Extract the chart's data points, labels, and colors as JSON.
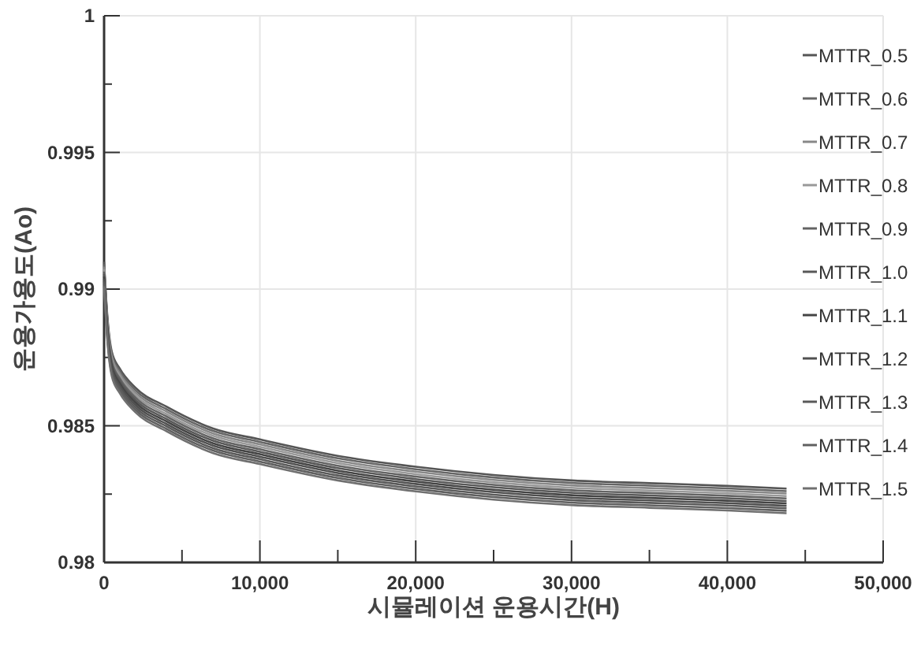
{
  "chart_data": {
    "type": "line",
    "xlabel": "시뮬레이션 운용시간(H)",
    "ylabel": "운용가용도(Ao)",
    "x": [
      0,
      200,
      500,
      1000,
      2000,
      4000,
      7000,
      10000,
      15000,
      20000,
      25000,
      30000,
      35000,
      40000,
      43800
    ],
    "xlim": [
      0,
      50000
    ],
    "xticks": [
      {
        "value": 0,
        "label": "0"
      },
      {
        "value": 5000,
        "label": null
      },
      {
        "value": 10000,
        "label": "10,000"
      },
      {
        "value": 15000,
        "label": null
      },
      {
        "value": 20000,
        "label": "20,000"
      },
      {
        "value": 25000,
        "label": null
      },
      {
        "value": 30000,
        "label": "30,000"
      },
      {
        "value": 35000,
        "label": null
      },
      {
        "value": 40000,
        "label": "40,000"
      },
      {
        "value": 45000,
        "label": null
      },
      {
        "value": 50000,
        "label": "50,000"
      }
    ],
    "ylim": [
      0.98,
      1
    ],
    "yticks": [
      0.98,
      {
        "value": 0.9825,
        "label": null
      },
      0.985,
      {
        "value": 0.9875,
        "label": null
      },
      0.99,
      {
        "value": 0.9925,
        "label": null
      },
      0.995,
      {
        "value": 0.9975,
        "label": null
      },
      1
    ],
    "grid": true,
    "legend": "right",
    "marker": "none",
    "line_style": "solid",
    "series": [
      {
        "name": "MTTR_0.5",
        "color": "#555555",
        "values": [
          0.991,
          0.9891,
          0.9877,
          0.9871,
          0.9864,
          0.9857,
          0.9849,
          0.9845,
          0.9839,
          0.9835,
          0.9832,
          0.983,
          0.9829,
          0.9828,
          0.9827
        ]
      },
      {
        "name": "MTTR_0.6",
        "color": "#666666",
        "values": [
          0.99091,
          0.98901,
          0.98761,
          0.98701,
          0.98631,
          0.98561,
          0.98481,
          0.98441,
          0.98381,
          0.98341,
          0.98311,
          0.98291,
          0.98281,
          0.98271,
          0.98261
        ]
      },
      {
        "name": "MTTR_0.7",
        "color": "#888888",
        "values": [
          0.99082,
          0.98892,
          0.98752,
          0.98692,
          0.98622,
          0.98552,
          0.98472,
          0.98432,
          0.98372,
          0.98332,
          0.98302,
          0.98282,
          0.98272,
          0.98262,
          0.98252
        ]
      },
      {
        "name": "MTTR_0.8",
        "color": "#999999",
        "values": [
          0.99073,
          0.98883,
          0.98743,
          0.98683,
          0.98613,
          0.98543,
          0.98463,
          0.98423,
          0.98363,
          0.98323,
          0.98293,
          0.98273,
          0.98263,
          0.98253,
          0.98243
        ]
      },
      {
        "name": "MTTR_0.9",
        "color": "#646464",
        "values": [
          0.99064,
          0.98874,
          0.98734,
          0.98674,
          0.98604,
          0.98534,
          0.98454,
          0.98414,
          0.98354,
          0.98314,
          0.98284,
          0.98264,
          0.98254,
          0.98244,
          0.98234
        ]
      },
      {
        "name": "MTTR_1.0",
        "color": "#585858",
        "values": [
          0.99055,
          0.98865,
          0.98725,
          0.98665,
          0.98595,
          0.98525,
          0.98445,
          0.98405,
          0.98345,
          0.98305,
          0.98275,
          0.98255,
          0.98245,
          0.98235,
          0.98225
        ]
      },
      {
        "name": "MTTR_1.1",
        "color": "#444444",
        "values": [
          0.99046,
          0.98856,
          0.98716,
          0.98656,
          0.98586,
          0.98516,
          0.98436,
          0.98396,
          0.98336,
          0.98296,
          0.98266,
          0.98246,
          0.98236,
          0.98226,
          0.98216
        ]
      },
      {
        "name": "MTTR_1.2",
        "color": "#505050",
        "values": [
          0.99037,
          0.98847,
          0.98707,
          0.98647,
          0.98577,
          0.98507,
          0.98427,
          0.98387,
          0.98327,
          0.98287,
          0.98257,
          0.98237,
          0.98227,
          0.98217,
          0.98207
        ]
      },
      {
        "name": "MTTR_1.3",
        "color": "#5a5a5a",
        "values": [
          0.99028,
          0.98838,
          0.98698,
          0.98638,
          0.98568,
          0.98498,
          0.98418,
          0.98378,
          0.98318,
          0.98278,
          0.98248,
          0.98228,
          0.98218,
          0.98208,
          0.98198
        ]
      },
      {
        "name": "MTTR_1.4",
        "color": "#606060",
        "values": [
          0.99019,
          0.98829,
          0.98689,
          0.98629,
          0.98559,
          0.98489,
          0.98409,
          0.98369,
          0.98309,
          0.98269,
          0.98239,
          0.98219,
          0.98209,
          0.98199,
          0.98189
        ]
      },
      {
        "name": "MTTR_1.5",
        "color": "#707070",
        "values": [
          0.9901,
          0.9882,
          0.9868,
          0.9862,
          0.9855,
          0.9848,
          0.984,
          0.9836,
          0.983,
          0.9826,
          0.9823,
          0.9821,
          0.982,
          0.9819,
          0.9818
        ]
      }
    ]
  }
}
